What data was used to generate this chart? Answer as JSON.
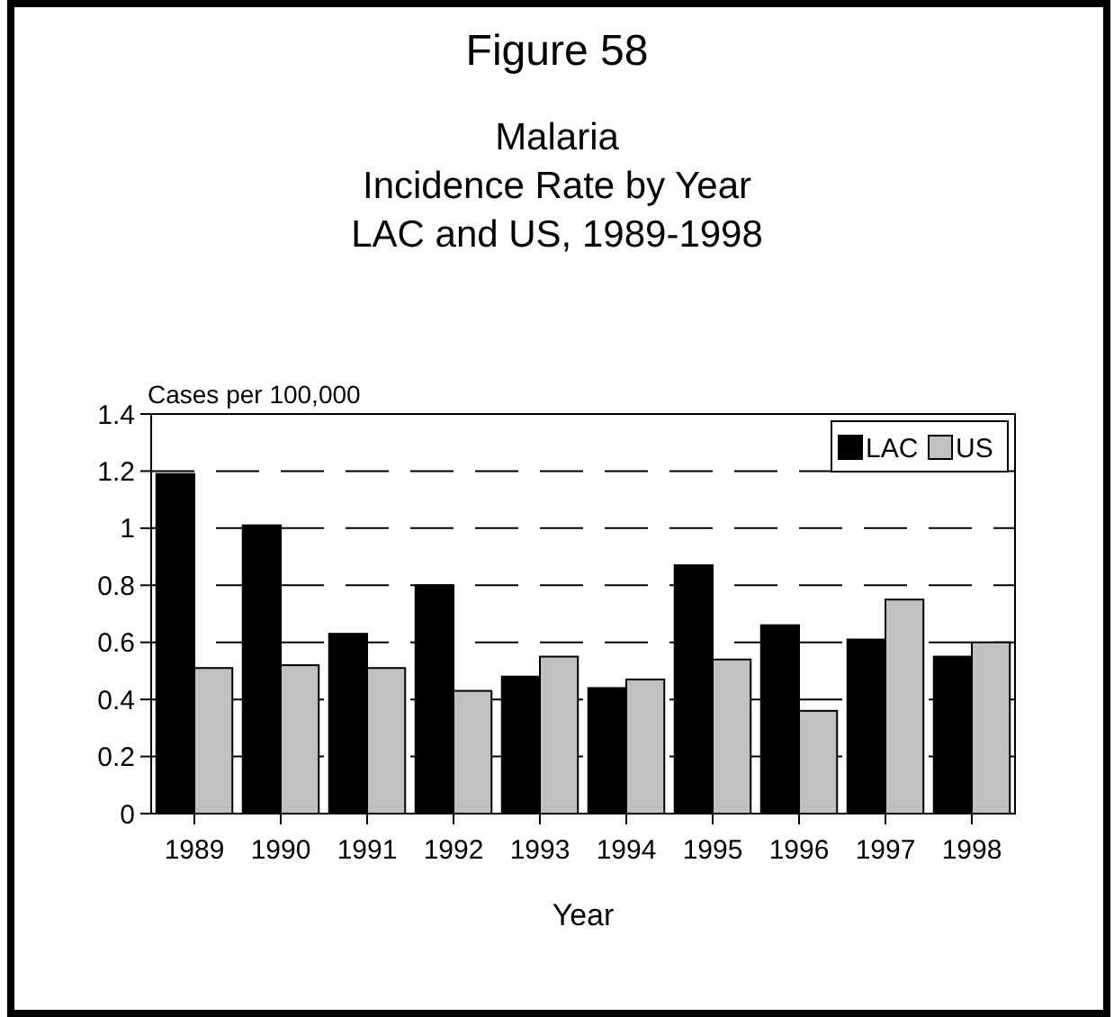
{
  "chart_data": {
    "type": "bar",
    "title": "Figure 58",
    "subtitle": "Malaria\nIncidence Rate by Year\nLAC and US, 1989-1998",
    "xlabel": "Year",
    "ylabel": "Cases per 100,000",
    "categories": [
      "1989",
      "1990",
      "1991",
      "1992",
      "1993",
      "1994",
      "1995",
      "1996",
      "1997",
      "1998"
    ],
    "series": [
      {
        "name": "LAC",
        "color": "#000000",
        "values": [
          1.19,
          1.01,
          0.63,
          0.8,
          0.48,
          0.44,
          0.87,
          0.66,
          0.61,
          0.55
        ]
      },
      {
        "name": "US",
        "color": "#c0c0c0",
        "values": [
          0.51,
          0.52,
          0.51,
          0.43,
          0.55,
          0.47,
          0.54,
          0.36,
          0.75,
          0.6
        ]
      }
    ],
    "ylim": [
      0,
      1.4
    ],
    "yticks": [
      0,
      0.2,
      0.4,
      0.6,
      0.8,
      1,
      1.2,
      1.4
    ],
    "grid": "y",
    "line_style": "dashed",
    "legend": "top right"
  }
}
